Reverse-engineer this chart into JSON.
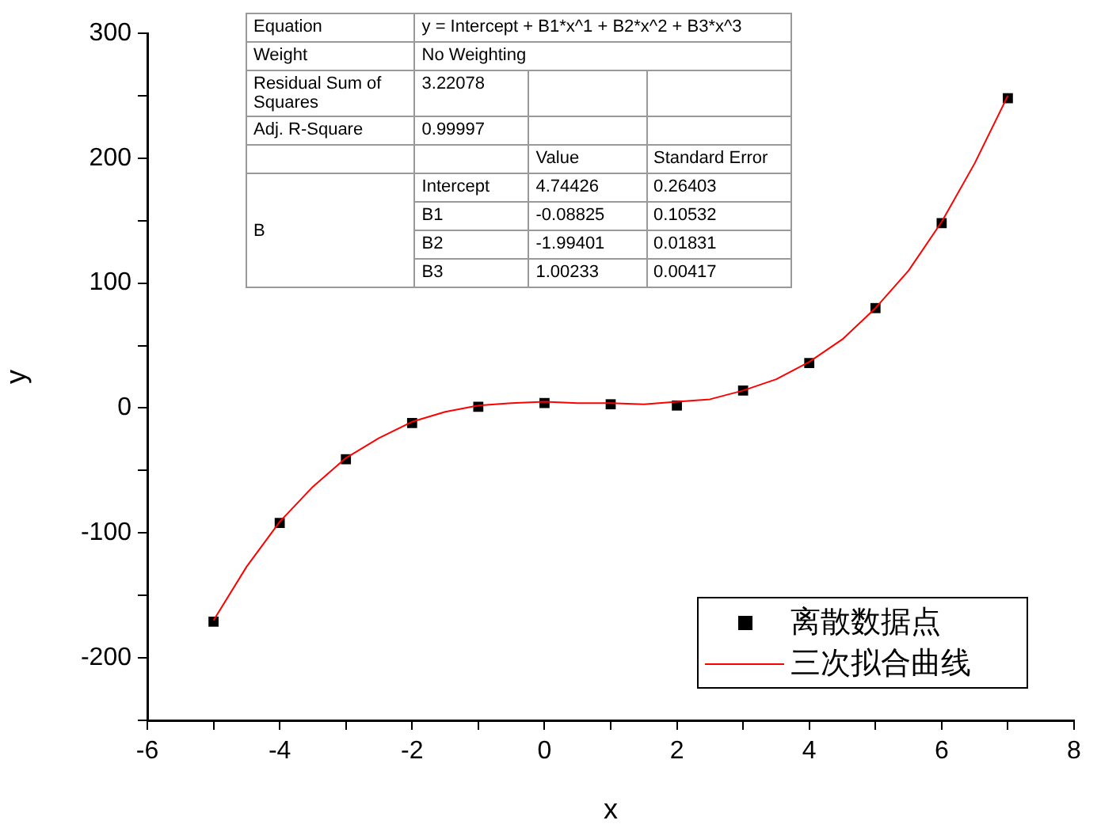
{
  "chart_data": {
    "type": "scatter",
    "xlabel": "x",
    "ylabel": "y",
    "xlim": [
      -6,
      8
    ],
    "xticks": [
      -6,
      {
        "value": -5,
        "label": null
      },
      -4,
      {
        "value": -3,
        "label": null
      },
      -2,
      {
        "value": -1,
        "label": null
      },
      0,
      {
        "value": 1,
        "label": null
      },
      2,
      {
        "value": 3,
        "label": null
      },
      4,
      {
        "value": 5,
        "label": null
      },
      6,
      {
        "value": 7,
        "label": null
      },
      8
    ],
    "ylim": [
      -250,
      300
    ],
    "yticks": [
      {
        "value": -250,
        "label": null
      },
      -200,
      {
        "value": -150,
        "label": null
      },
      -100,
      {
        "value": -50,
        "label": null
      },
      0,
      {
        "value": 50,
        "label": null
      },
      100,
      {
        "value": 150,
        "label": null
      },
      200,
      {
        "value": 250,
        "label": null
      },
      300
    ],
    "grid": false,
    "legend": "bottom right",
    "series": [
      {
        "name": "离散数据点",
        "color": "#000000",
        "marker": "square",
        "x": [
          -5,
          -4,
          -3,
          -2,
          -1,
          0,
          1,
          2,
          3,
          4,
          5,
          6,
          7
        ],
        "values": [
          -171,
          -92,
          -41,
          -12,
          1,
          4,
          3,
          2,
          14,
          36,
          80,
          148,
          248
        ]
      },
      {
        "name": "三次拟合曲线",
        "type": "line",
        "color": "#ff0000",
        "marker": "none",
        "line_style": "solid",
        "x": [
          -5,
          -4.5,
          -4,
          -3.5,
          -3,
          -2.5,
          -2,
          -1.5,
          -1,
          -0.5,
          0,
          0.5,
          1,
          1.5,
          2,
          2.5,
          3,
          3.5,
          4,
          4.5,
          5,
          5.5,
          6,
          6.5,
          7
        ],
        "values": [
          -170,
          -127,
          -91,
          -63,
          -40,
          -24,
          -11,
          -3,
          2,
          4,
          5,
          4,
          4,
          3,
          5,
          7,
          14,
          23,
          37,
          55,
          80,
          110,
          149,
          196,
          250
        ]
      }
    ],
    "annotations": [
      "Equation",
      "y = Intercept + B1*x^1 + B2*x^2 + B3*x^3",
      "Weight",
      "No Weighting",
      "Residual Sum of Squares",
      "3.22078",
      "Adj. R-Square",
      "0.99997",
      "Value",
      "Standard Error",
      "B",
      "Intercept",
      "4.74426",
      "0.26403",
      "B1",
      "-0.08825",
      "0.10532",
      "B2",
      "-1.99401",
      "0.01831",
      "B3",
      "1.00233",
      "0.00417"
    ]
  }
}
